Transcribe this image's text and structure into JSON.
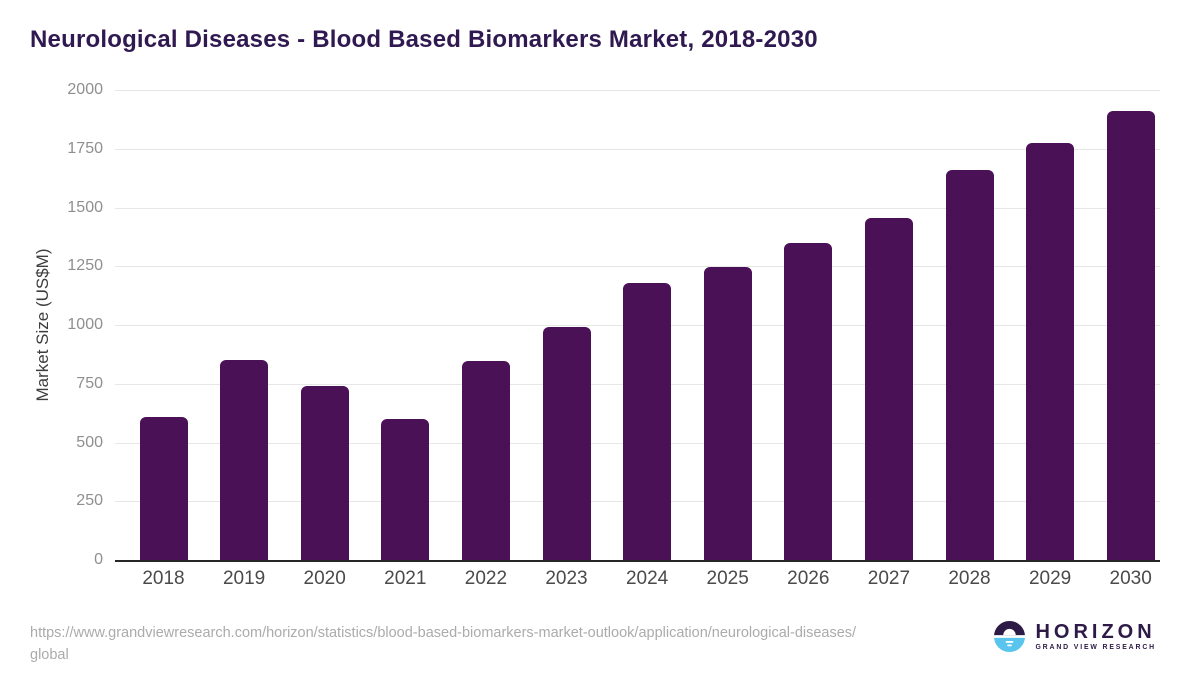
{
  "title": "Neurological Diseases - Blood Based Biomarkers Market, 2018-2030",
  "chart_data": {
    "type": "bar",
    "title": "Neurological Diseases - Blood Based Biomarkers Market, 2018-2030",
    "categories": [
      "2018",
      "2019",
      "2020",
      "2021",
      "2022",
      "2023",
      "2024",
      "2025",
      "2026",
      "2027",
      "2028",
      "2029",
      "2030"
    ],
    "values": [
      610,
      850,
      740,
      600,
      845,
      990,
      1180,
      1245,
      1350,
      1455,
      1660,
      1775,
      1910
    ],
    "xlabel": "",
    "ylabel": "Market Size (US$M)",
    "ylim": [
      0,
      2000
    ],
    "yticks": [
      0,
      250,
      500,
      750,
      1000,
      1250,
      1500,
      1750,
      2000
    ],
    "bar_color": "#4a1157",
    "grid": true,
    "legend": "none"
  },
  "footer": {
    "source_line1": "https://www.grandviewresearch.com/horizon/statistics/blood-based-biomarkers-market-outlook/application/neurological-diseases/",
    "source_line2": "global",
    "logo": {
      "name": "HORIZON",
      "subtitle": "GRAND VIEW RESEARCH",
      "icon": "horizon-sun-icon",
      "colors": {
        "dark_purple": "#2e1a47",
        "light_blue": "#59c5ee"
      }
    }
  }
}
